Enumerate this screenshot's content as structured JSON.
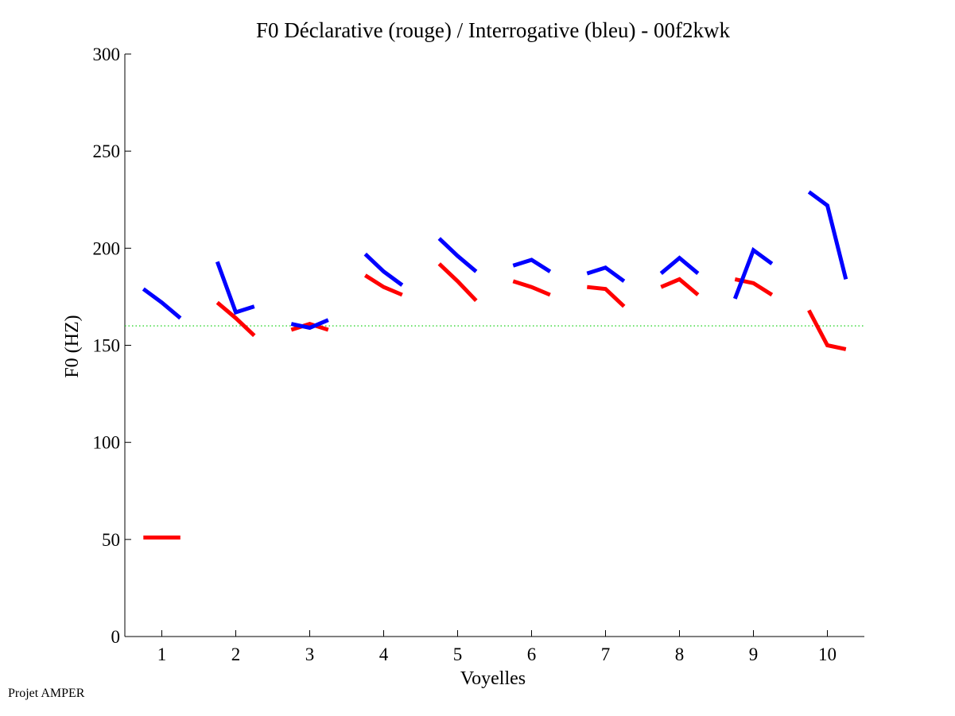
{
  "credit": "Projet AMPER",
  "chart_data": {
    "type": "line",
    "title": "F0 Déclarative (rouge) / Interrogative (bleu) - 00f2kwk",
    "xlabel": "Voyelles",
    "ylabel": "F0 (HZ)",
    "xlim": [
      0.5,
      10.5
    ],
    "ylim": [
      0,
      300
    ],
    "xticks": [
      1,
      2,
      3,
      4,
      5,
      6,
      7,
      8,
      9,
      10
    ],
    "yticks": [
      0,
      50,
      100,
      150,
      200,
      250,
      300
    ],
    "grid": false,
    "reference_line": {
      "value": 160,
      "color": "#00cc00",
      "style": "dotted"
    },
    "series": [
      {
        "name": "Déclarative",
        "color": "#ff0000",
        "segments": [
          {
            "vowel": 1,
            "values": [
              51,
              51,
              51
            ]
          },
          {
            "vowel": 2,
            "values": [
              172,
              164,
              155
            ]
          },
          {
            "vowel": 3,
            "values": [
              158,
              161,
              158
            ]
          },
          {
            "vowel": 4,
            "values": [
              186,
              180,
              176
            ]
          },
          {
            "vowel": 5,
            "values": [
              192,
              183,
              173
            ]
          },
          {
            "vowel": 6,
            "values": [
              183,
              180,
              176
            ]
          },
          {
            "vowel": 7,
            "values": [
              180,
              179,
              170
            ]
          },
          {
            "vowel": 8,
            "values": [
              180,
              184,
              176
            ]
          },
          {
            "vowel": 9,
            "values": [
              184,
              182,
              176
            ]
          },
          {
            "vowel": 10,
            "values": [
              168,
              150,
              148
            ]
          }
        ]
      },
      {
        "name": "Interrogative",
        "color": "#0000ff",
        "segments": [
          {
            "vowel": 1,
            "values": [
              179,
              172,
              164
            ]
          },
          {
            "vowel": 2,
            "values": [
              193,
              167,
              170
            ]
          },
          {
            "vowel": 3,
            "values": [
              161,
              159,
              163
            ]
          },
          {
            "vowel": 4,
            "values": [
              197,
              188,
              181
            ]
          },
          {
            "vowel": 5,
            "values": [
              205,
              196,
              188
            ]
          },
          {
            "vowel": 6,
            "values": [
              191,
              194,
              188
            ]
          },
          {
            "vowel": 7,
            "values": [
              187,
              190,
              183
            ]
          },
          {
            "vowel": 8,
            "values": [
              187,
              195,
              187
            ]
          },
          {
            "vowel": 9,
            "values": [
              174,
              199,
              192
            ]
          },
          {
            "vowel": 10,
            "values": [
              229,
              222,
              184
            ]
          }
        ]
      }
    ]
  }
}
